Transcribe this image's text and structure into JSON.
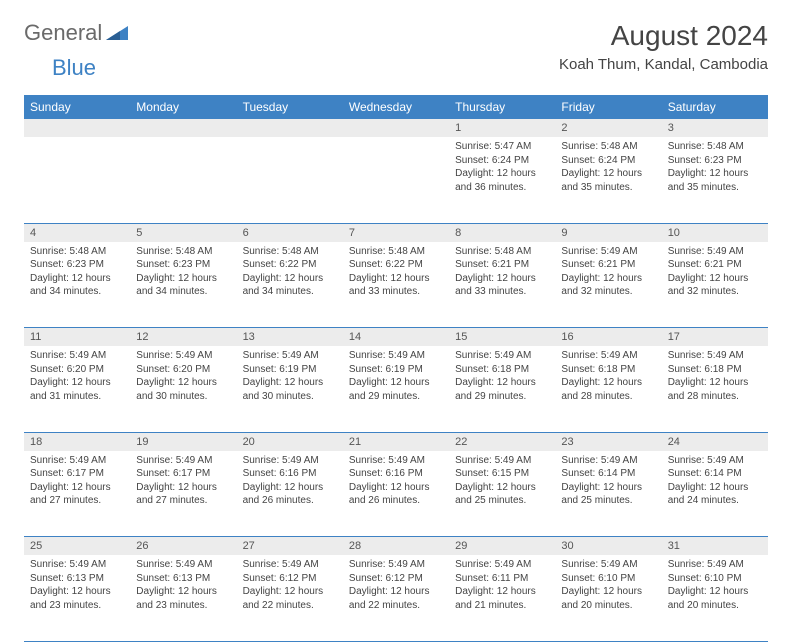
{
  "header": {
    "logo_text_1": "General",
    "logo_text_2": "Blue",
    "month_title": "August 2024",
    "location": "Koah Thum, Kandal, Cambodia"
  },
  "colors": {
    "header_bg": "#3e82c4",
    "header_text": "#ffffff",
    "daynum_bg": "#ececec",
    "row_border": "#3e82c4",
    "body_text": "#444444",
    "logo_gray": "#6a6a6a",
    "logo_blue": "#3e82c4"
  },
  "columns": [
    "Sunday",
    "Monday",
    "Tuesday",
    "Wednesday",
    "Thursday",
    "Friday",
    "Saturday"
  ],
  "weeks": [
    [
      null,
      null,
      null,
      null,
      {
        "n": "1",
        "sr": "5:47 AM",
        "ss": "6:24 PM",
        "dl": "12 hours and 36 minutes."
      },
      {
        "n": "2",
        "sr": "5:48 AM",
        "ss": "6:24 PM",
        "dl": "12 hours and 35 minutes."
      },
      {
        "n": "3",
        "sr": "5:48 AM",
        "ss": "6:23 PM",
        "dl": "12 hours and 35 minutes."
      }
    ],
    [
      {
        "n": "4",
        "sr": "5:48 AM",
        "ss": "6:23 PM",
        "dl": "12 hours and 34 minutes."
      },
      {
        "n": "5",
        "sr": "5:48 AM",
        "ss": "6:23 PM",
        "dl": "12 hours and 34 minutes."
      },
      {
        "n": "6",
        "sr": "5:48 AM",
        "ss": "6:22 PM",
        "dl": "12 hours and 34 minutes."
      },
      {
        "n": "7",
        "sr": "5:48 AM",
        "ss": "6:22 PM",
        "dl": "12 hours and 33 minutes."
      },
      {
        "n": "8",
        "sr": "5:48 AM",
        "ss": "6:21 PM",
        "dl": "12 hours and 33 minutes."
      },
      {
        "n": "9",
        "sr": "5:49 AM",
        "ss": "6:21 PM",
        "dl": "12 hours and 32 minutes."
      },
      {
        "n": "10",
        "sr": "5:49 AM",
        "ss": "6:21 PM",
        "dl": "12 hours and 32 minutes."
      }
    ],
    [
      {
        "n": "11",
        "sr": "5:49 AM",
        "ss": "6:20 PM",
        "dl": "12 hours and 31 minutes."
      },
      {
        "n": "12",
        "sr": "5:49 AM",
        "ss": "6:20 PM",
        "dl": "12 hours and 30 minutes."
      },
      {
        "n": "13",
        "sr": "5:49 AM",
        "ss": "6:19 PM",
        "dl": "12 hours and 30 minutes."
      },
      {
        "n": "14",
        "sr": "5:49 AM",
        "ss": "6:19 PM",
        "dl": "12 hours and 29 minutes."
      },
      {
        "n": "15",
        "sr": "5:49 AM",
        "ss": "6:18 PM",
        "dl": "12 hours and 29 minutes."
      },
      {
        "n": "16",
        "sr": "5:49 AM",
        "ss": "6:18 PM",
        "dl": "12 hours and 28 minutes."
      },
      {
        "n": "17",
        "sr": "5:49 AM",
        "ss": "6:18 PM",
        "dl": "12 hours and 28 minutes."
      }
    ],
    [
      {
        "n": "18",
        "sr": "5:49 AM",
        "ss": "6:17 PM",
        "dl": "12 hours and 27 minutes."
      },
      {
        "n": "19",
        "sr": "5:49 AM",
        "ss": "6:17 PM",
        "dl": "12 hours and 27 minutes."
      },
      {
        "n": "20",
        "sr": "5:49 AM",
        "ss": "6:16 PM",
        "dl": "12 hours and 26 minutes."
      },
      {
        "n": "21",
        "sr": "5:49 AM",
        "ss": "6:16 PM",
        "dl": "12 hours and 26 minutes."
      },
      {
        "n": "22",
        "sr": "5:49 AM",
        "ss": "6:15 PM",
        "dl": "12 hours and 25 minutes."
      },
      {
        "n": "23",
        "sr": "5:49 AM",
        "ss": "6:14 PM",
        "dl": "12 hours and 25 minutes."
      },
      {
        "n": "24",
        "sr": "5:49 AM",
        "ss": "6:14 PM",
        "dl": "12 hours and 24 minutes."
      }
    ],
    [
      {
        "n": "25",
        "sr": "5:49 AM",
        "ss": "6:13 PM",
        "dl": "12 hours and 23 minutes."
      },
      {
        "n": "26",
        "sr": "5:49 AM",
        "ss": "6:13 PM",
        "dl": "12 hours and 23 minutes."
      },
      {
        "n": "27",
        "sr": "5:49 AM",
        "ss": "6:12 PM",
        "dl": "12 hours and 22 minutes."
      },
      {
        "n": "28",
        "sr": "5:49 AM",
        "ss": "6:12 PM",
        "dl": "12 hours and 22 minutes."
      },
      {
        "n": "29",
        "sr": "5:49 AM",
        "ss": "6:11 PM",
        "dl": "12 hours and 21 minutes."
      },
      {
        "n": "30",
        "sr": "5:49 AM",
        "ss": "6:10 PM",
        "dl": "12 hours and 20 minutes."
      },
      {
        "n": "31",
        "sr": "5:49 AM",
        "ss": "6:10 PM",
        "dl": "12 hours and 20 minutes."
      }
    ]
  ],
  "labels": {
    "sunrise": "Sunrise: ",
    "sunset": "Sunset: ",
    "daylight": "Daylight: "
  }
}
